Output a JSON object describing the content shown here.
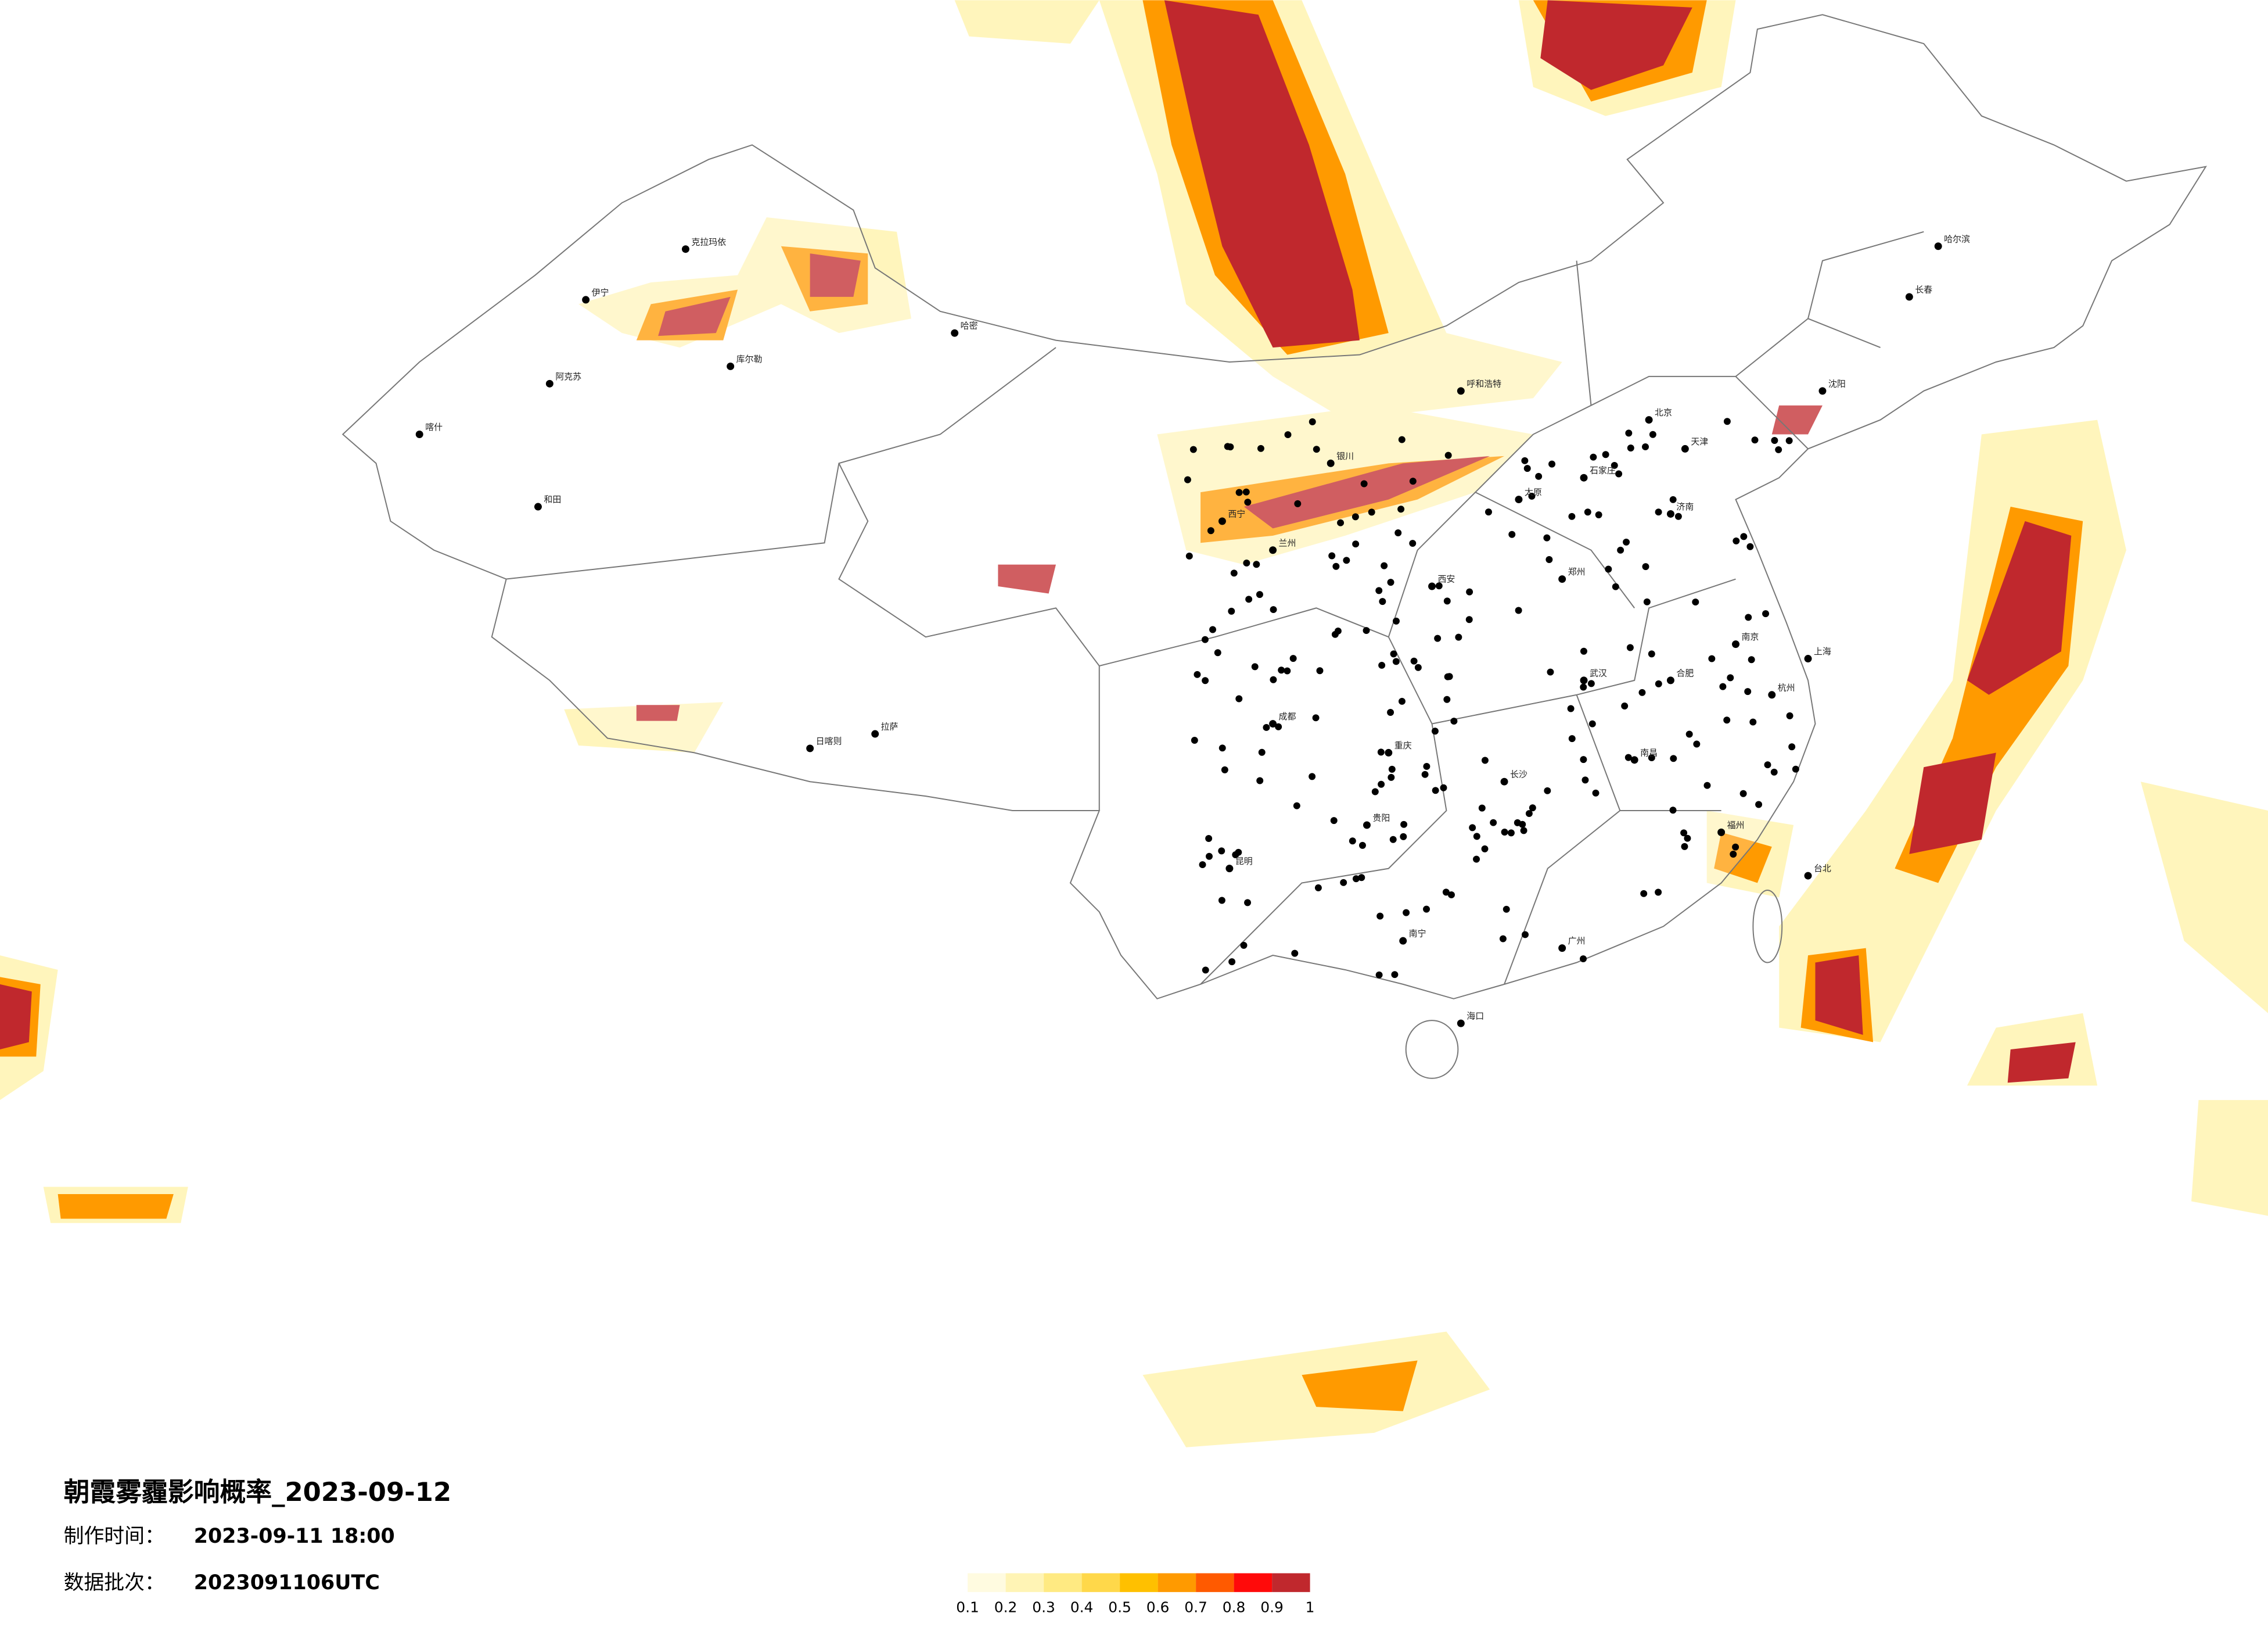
{
  "title": "朝霞雾霾影响概率_2023-09-12",
  "info": [
    {
      "label": "制作时间：",
      "value": "2023-09-11 18:00"
    },
    {
      "label": "数据批次：",
      "value": "2023091106UTC"
    }
  ],
  "legend": {
    "colors": [
      "#fffbe0",
      "#fff4b5",
      "#ffea82",
      "#ffd84a",
      "#ffc000",
      "#ff9a00",
      "#ff5a00",
      "#ff0a0a",
      "#c0282d"
    ],
    "ticks": [
      0.1,
      0.2,
      0.3,
      0.4,
      0.5,
      0.6,
      0.7,
      0.8,
      0.9,
      1
    ]
  },
  "cities": [
    "克拉玛依",
    "伊宁",
    "阿克苏",
    "和田",
    "喀什",
    "库尔勒",
    "哈密",
    "拉萨",
    "日喀则",
    "西宁",
    "兰州",
    "银川",
    "呼和浩特",
    "北京",
    "天津",
    "石家庄",
    "太原",
    "济南",
    "郑州",
    "西安",
    "成都",
    "重庆",
    "贵阳",
    "昆明",
    "南宁",
    "海口",
    "广州",
    "长沙",
    "武汉",
    "南昌",
    "福州",
    "杭州",
    "上海",
    "南京",
    "合肥",
    "沈阳",
    "长春",
    "哈尔滨",
    "台北"
  ]
}
